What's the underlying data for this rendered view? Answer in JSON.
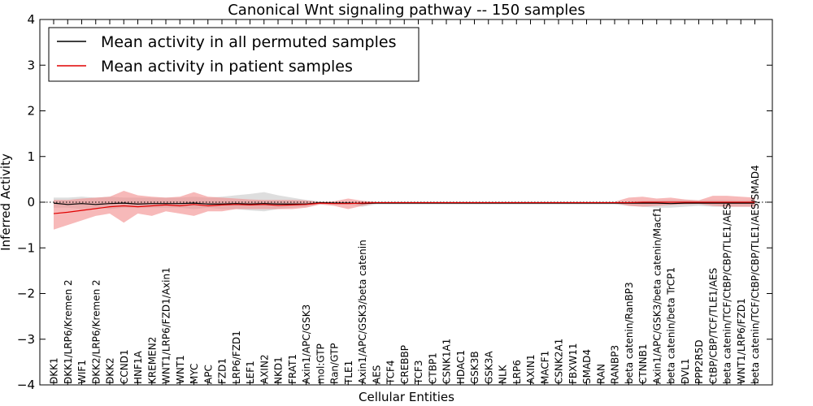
{
  "chart_data": {
    "type": "line",
    "title": "Canonical Wnt signaling pathway -- 150 samples",
    "xlabel": "Cellular Entities",
    "ylabel": "Inferred Activity",
    "ylim": [
      -4,
      4
    ],
    "yticks": [
      -4,
      -3,
      -2,
      -1,
      0,
      1,
      2,
      3,
      4
    ],
    "grid": false,
    "legend_position": "top-left",
    "zero_line": "dotted",
    "categories": [
      "DKK1",
      "DKK1/LRP6/Kremen 2",
      "WIF1",
      "DKK2/LRP6/Kremen 2",
      "DKK2",
      "CCND1",
      "HNF1A",
      "KREMEN2",
      "WNT1/LRP6/FZD1/Axin1",
      "WNT1",
      "MYC",
      "APC",
      "FZD1",
      "LRP6/FZD1",
      "LEF1",
      "AXIN2",
      "NKD1",
      "FRAT1",
      "Axin1/APC/GSK3",
      "mol:GTP",
      "Ran/GTP",
      "TLE1",
      "Axin1/APC/GSK3/beta catenin",
      "AES",
      "TCF4",
      "CREBBP",
      "TCF3",
      "CTBP1",
      "CSNK1A1",
      "HDAC1",
      "GSK3B",
      "GSK3A",
      "NLK",
      "LRP6",
      "AXIN1",
      "MACF1",
      "CSNK2A1",
      "FBXW11",
      "SMAD4",
      "RAN",
      "RANBP3",
      "beta catenin/RanBP3",
      "CTNNB1",
      "Axin1/APC/GSK3/beta catenin/Macf1",
      "beta catenin/beta TrCP1",
      "DVL1",
      "PPP2R5D",
      "CtBP/CBP/TCF/TLE1/AES",
      "beta catenin/TCF/CtBP/CBP/TLE1/AES",
      "WNT1/LRP6/FZD1",
      "beta catenin/TCF/CtBP/CBP/TLE1/AES/SMAD4"
    ],
    "series": [
      {
        "name": "Mean activity in all permuted samples",
        "color": "#000000",
        "values": [
          -0.02,
          -0.05,
          -0.03,
          -0.05,
          -0.03,
          -0.02,
          -0.04,
          -0.03,
          -0.03,
          -0.03,
          -0.02,
          -0.04,
          -0.04,
          -0.03,
          -0.04,
          -0.03,
          -0.04,
          -0.04,
          -0.04,
          -0.01,
          -0.02,
          -0.02,
          -0.03,
          -0.02,
          -0.02,
          -0.02,
          -0.02,
          -0.02,
          -0.02,
          -0.02,
          -0.02,
          -0.02,
          -0.02,
          -0.02,
          -0.02,
          -0.02,
          -0.02,
          -0.02,
          -0.02,
          -0.02,
          -0.02,
          -0.02,
          -0.02,
          -0.02,
          -0.03,
          -0.02,
          -0.02,
          -0.02,
          -0.02,
          -0.02,
          -0.02
        ],
        "band_upper": [
          0.1,
          0.1,
          0.12,
          0.1,
          0.12,
          0.1,
          0.1,
          0.1,
          0.1,
          0.1,
          0.12,
          0.1,
          0.12,
          0.15,
          0.18,
          0.22,
          0.15,
          0.1,
          0.05,
          0.02,
          0.0,
          0.0,
          0.02,
          0.0,
          0.0,
          0.0,
          0.0,
          0.0,
          0.0,
          0.0,
          0.0,
          0.0,
          0.0,
          0.0,
          0.0,
          0.0,
          0.0,
          0.0,
          0.0,
          0.0,
          0.0,
          0.02,
          0.03,
          0.04,
          0.05,
          0.05,
          0.04,
          0.05,
          0.05,
          0.04,
          0.05
        ],
        "band_lower": [
          -0.12,
          -0.12,
          -0.15,
          -0.12,
          -0.15,
          -0.12,
          -0.12,
          -0.12,
          -0.12,
          -0.12,
          -0.15,
          -0.12,
          -0.15,
          -0.15,
          -0.18,
          -0.2,
          -0.15,
          -0.12,
          -0.1,
          -0.05,
          -0.05,
          -0.05,
          -0.1,
          -0.05,
          -0.05,
          -0.05,
          -0.05,
          -0.05,
          -0.05,
          -0.05,
          -0.05,
          -0.05,
          -0.05,
          -0.05,
          -0.05,
          -0.05,
          -0.05,
          -0.05,
          -0.05,
          -0.05,
          -0.05,
          -0.08,
          -0.1,
          -0.12,
          -0.12,
          -0.1,
          -0.08,
          -0.1,
          -0.1,
          -0.1,
          -0.1
        ]
      },
      {
        "name": "Mean activity in patient samples",
        "color": "#e00000",
        "band_color": "#f28a8a",
        "values": [
          -0.25,
          -0.22,
          -0.18,
          -0.14,
          -0.1,
          -0.08,
          -0.1,
          -0.08,
          -0.06,
          -0.08,
          -0.05,
          -0.08,
          -0.06,
          -0.05,
          -0.06,
          -0.05,
          -0.07,
          -0.06,
          -0.05,
          -0.02,
          -0.03,
          -0.03,
          -0.02,
          -0.01,
          -0.01,
          -0.01,
          -0.01,
          -0.01,
          -0.01,
          -0.01,
          -0.01,
          -0.01,
          -0.01,
          -0.01,
          -0.01,
          -0.01,
          -0.01,
          -0.01,
          -0.01,
          -0.01,
          -0.01,
          -0.01,
          0.0,
          0.0,
          0.0,
          0.0,
          0.0,
          0.0,
          0.0,
          0.0,
          0.0
        ],
        "band_upper": [
          0.05,
          0.05,
          0.08,
          0.1,
          0.12,
          0.25,
          0.15,
          0.12,
          0.1,
          0.12,
          0.22,
          0.12,
          0.1,
          0.08,
          0.06,
          0.05,
          0.05,
          0.05,
          0.04,
          0.0,
          0.02,
          0.08,
          0.03,
          0.01,
          0.01,
          0.01,
          0.01,
          0.01,
          0.01,
          0.01,
          0.01,
          0.01,
          0.01,
          0.01,
          0.01,
          0.01,
          0.01,
          0.01,
          0.01,
          0.01,
          0.01,
          0.1,
          0.12,
          0.08,
          0.1,
          0.06,
          0.04,
          0.14,
          0.14,
          0.12,
          0.1
        ],
        "band_lower": [
          -0.6,
          -0.5,
          -0.4,
          -0.3,
          -0.25,
          -0.45,
          -0.25,
          -0.3,
          -0.2,
          -0.25,
          -0.3,
          -0.2,
          -0.2,
          -0.15,
          -0.15,
          -0.15,
          -0.15,
          -0.15,
          -0.12,
          -0.05,
          -0.08,
          -0.15,
          -0.08,
          -0.02,
          -0.02,
          -0.02,
          -0.02,
          -0.02,
          -0.02,
          -0.02,
          -0.02,
          -0.02,
          -0.02,
          -0.02,
          -0.02,
          -0.02,
          -0.02,
          -0.02,
          -0.02,
          -0.02,
          -0.02,
          -0.08,
          -0.1,
          -0.08,
          -0.06,
          -0.05,
          -0.04,
          -0.08,
          -0.1,
          -0.1,
          -0.1
        ]
      }
    ]
  }
}
